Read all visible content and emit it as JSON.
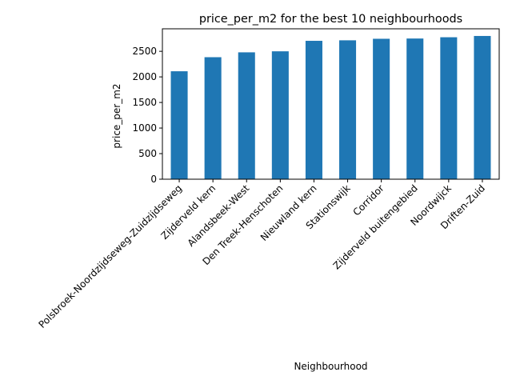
{
  "chart_data": {
    "type": "bar",
    "title": "price_per_m2 for the best 10 neighbourhoods",
    "xlabel": "Neighbourhood",
    "ylabel": "price_per_m2",
    "categories": [
      "Polsbroek-Noordzijdseweg-Zuidzijdseweg",
      "Zijderveld kern",
      "Alandsbeek-West",
      "Den Treek-Henschoten",
      "Nieuwland kern",
      "Stationswijk",
      "Corridor",
      "Zijderveld buitengebied",
      "Noordwijck",
      "Driften-Zuid"
    ],
    "values": [
      2110,
      2385,
      2480,
      2500,
      2705,
      2715,
      2745,
      2750,
      2775,
      2800
    ],
    "ylim": [
      0,
      2940
    ],
    "yticks": [
      0,
      500,
      1000,
      1500,
      2000,
      2500
    ],
    "grid": false,
    "bar_color": "#1f77b4"
  }
}
